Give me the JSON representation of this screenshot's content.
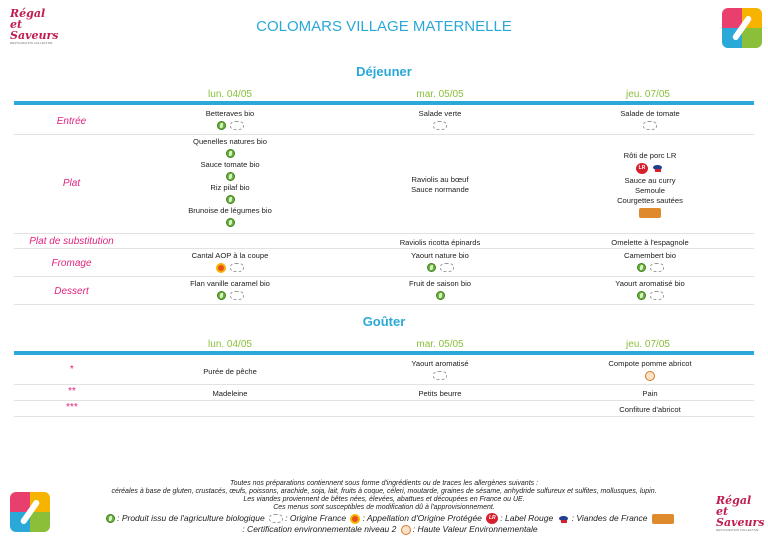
{
  "title": "COLOMARS VILLAGE MATERNELLE",
  "brand": {
    "name_line1": "Régal et",
    "name_line2": "Saveurs",
    "tagline": "RESTAURATION COLLECTIVE"
  },
  "dejeuner": {
    "section_title": "Déjeuner",
    "days": [
      "lun. 04/05",
      "mar. 05/05",
      "jeu. 07/05"
    ],
    "rows": {
      "entree": {
        "label": "Entrée",
        "cells": [
          "Betteraves bio",
          "Salade verte",
          "Salade de tomate"
        ]
      },
      "plat": {
        "label": "Plat",
        "mon": [
          "Quenelles natures bio",
          "Sauce tomate bio",
          "Riz pilaf bio",
          "Brunoise de légumes bio"
        ],
        "tue": [
          "Raviolis au bœuf",
          "Sauce normande"
        ],
        "thu": [
          "Rôti de porc LR",
          "Sauce au curry",
          "Semoule",
          "Courgettes sautées"
        ]
      },
      "substitution": {
        "label": "Plat de substitution",
        "cells": [
          "",
          "Raviolis ricotta épinards",
          "Omelette à l'espagnole"
        ]
      },
      "fromage": {
        "label": "Fromage",
        "cells": [
          "Cantal AOP à la coupe",
          "Yaourt nature bio",
          "Camembert bio"
        ]
      },
      "dessert": {
        "label": "Dessert",
        "cells": [
          "Flan vanille caramel bio",
          "Fruit de saison bio",
          "Yaourt aromatisé bio"
        ]
      }
    }
  },
  "gouter": {
    "section_title": "Goûter",
    "days": [
      "lun. 04/05",
      "mar. 05/05",
      "jeu. 07/05"
    ],
    "rows": [
      {
        "label": "*",
        "cells": [
          "Purée de pêche",
          "Yaourt aromatisé",
          "Compote pomme abricot"
        ]
      },
      {
        "label": "**",
        "cells": [
          "Madeleine",
          "Petits beurre",
          "Pain"
        ]
      },
      {
        "label": "***",
        "cells": [
          "",
          "",
          "Confiture d'abricot"
        ]
      }
    ]
  },
  "footer": {
    "line1": "Toutes nos préparations contiennent sous forme d'ingrédients ou de traces les allergènes suivants :",
    "line2": "céréales à base de gluten, crustacés, œufs, poissons, arachide, soja, lait, fruits à coque, céleri, moutarde, graines de sésame, anhydride sulfureux et sulfites, mollusques, lupin.",
    "line3": "Les viandes proviennent de bêtes nées, élevées, abattues et découpées en France ou UE.",
    "line4": "Ces menus sont susceptibles de modification dû à l'approvisionnement."
  },
  "legend": {
    "bio": ": Produit issu de l'agriculture biologique",
    "france": ": Origine France",
    "aop": ": Appellation d'Origine Protégée",
    "label_rouge": ": Label Rouge",
    "viandes": ": Viandes de France",
    "cert": ": Certification environnementale niveau 2",
    "hve": ": Haute Valeur Environnementale"
  },
  "icons": {
    "bio": "bio-leaf-icon",
    "france": "origine-france-icon",
    "aop": "aop-icon",
    "label_rouge": "label-rouge-icon",
    "viandes": "viandes-de-france-icon",
    "cert": "certification-env-icon",
    "hve": "hve-icon"
  }
}
